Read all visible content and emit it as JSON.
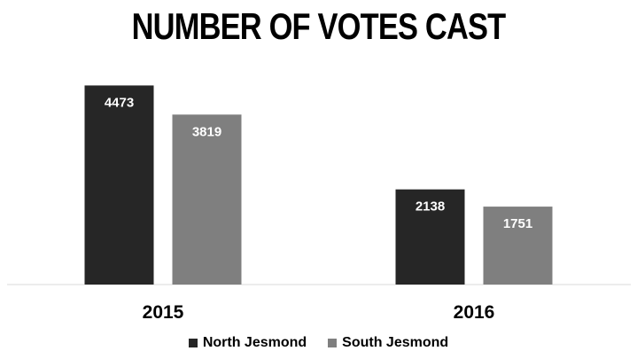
{
  "chart_data": {
    "type": "bar",
    "title": "NUMBER OF VOTES CAST",
    "categories": [
      "2015",
      "2016"
    ],
    "series": [
      {
        "name": "North Jesmond",
        "values": [
          4473,
          2138
        ],
        "color": "#262626"
      },
      {
        "name": "South Jesmond",
        "values": [
          3819,
          1751
        ],
        "color": "#7f7f7f"
      }
    ],
    "ylim": [
      0,
      4800
    ],
    "grid": false,
    "legend": "bottom"
  }
}
